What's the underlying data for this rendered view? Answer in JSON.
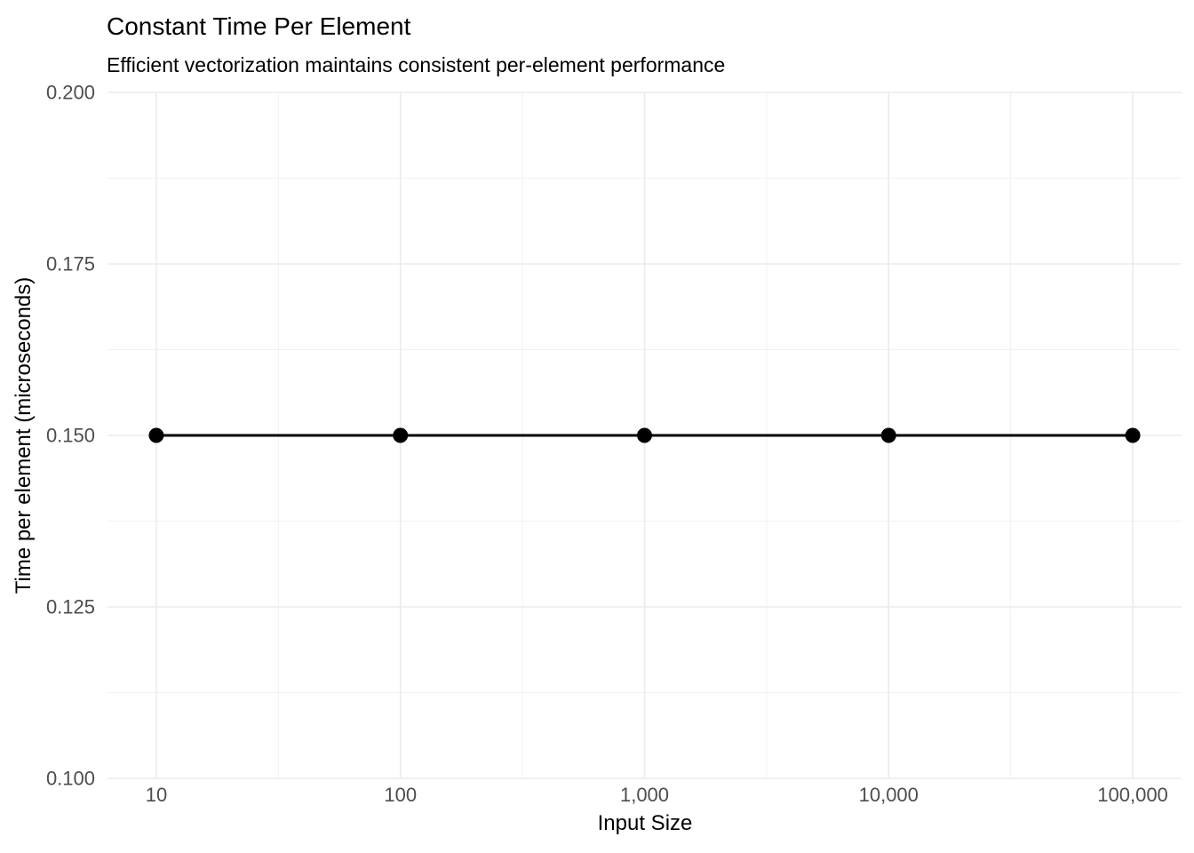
{
  "chart_data": {
    "type": "line",
    "title": "Constant Time Per Element",
    "subtitle": "Efficient vectorization maintains consistent per-element performance",
    "xlabel": "Input Size",
    "ylabel": "Time per element (microseconds)",
    "x_scale": "log10",
    "x": [
      10,
      100,
      1000,
      10000,
      100000
    ],
    "y": [
      0.15,
      0.15,
      0.15,
      0.15,
      0.15
    ],
    "x_tick_values": [
      10,
      100,
      1000,
      10000,
      100000
    ],
    "x_tick_labels": [
      "10",
      "100",
      "1,000",
      "10,000",
      "100,000"
    ],
    "x_minor_log_positions": [
      1.5,
      2.5,
      3.5,
      4.5
    ],
    "y_tick_values": [
      0.1,
      0.125,
      0.15,
      0.175,
      0.2
    ],
    "y_tick_labels": [
      "0.100",
      "0.125",
      "0.150",
      "0.175",
      "0.200"
    ],
    "y_minor_values": [
      0.1125,
      0.1375,
      0.1625,
      0.1875
    ],
    "ylim": [
      0.1,
      0.2
    ],
    "xlim_log": [
      0.8,
      5.2
    ],
    "grid": "major+minor",
    "legend_position": "none",
    "colors": {
      "line": "#000000",
      "point": "#000000",
      "grid_major": "#EBEBEB",
      "grid_minor": "#F1F1F1",
      "tick_text": "#4D4D4D",
      "title_text": "#000000",
      "background": "#FFFFFF"
    }
  }
}
